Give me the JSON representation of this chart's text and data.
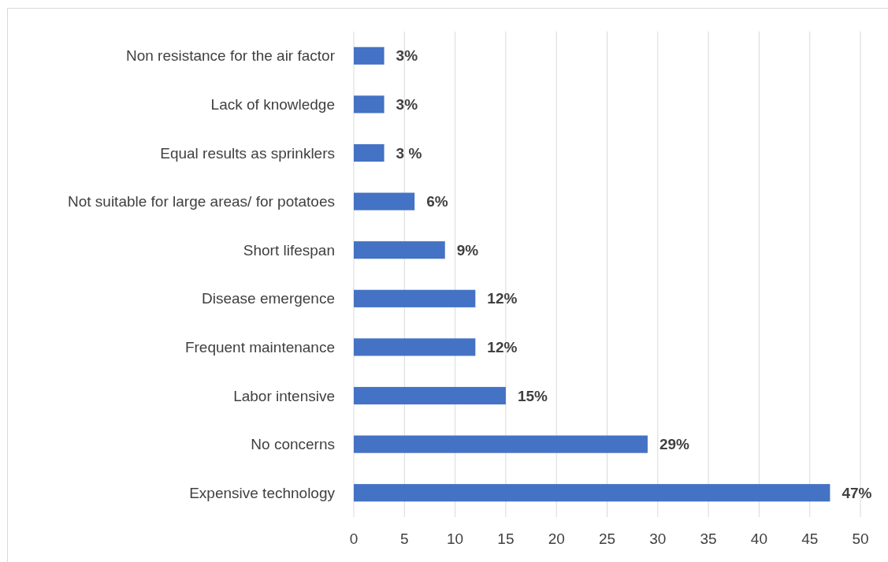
{
  "chart_data": {
    "type": "bar",
    "orientation": "horizontal",
    "categories": [
      "Non resistance for the air factor",
      "Lack of knowledge",
      "Equal results as sprinklers",
      "Not suitable for large areas/ for potatoes",
      "Short lifespan",
      "Disease emergence",
      "Frequent maintenance",
      "Labor intensive",
      "No concerns",
      "Expensive technology"
    ],
    "values": [
      3,
      3,
      3,
      6,
      9,
      12,
      12,
      15,
      29,
      47
    ],
    "value_labels": [
      "3%",
      "3%",
      "3 %",
      "6%",
      "9%",
      "12%",
      "12%",
      "15%",
      "29%",
      "47%"
    ],
    "color": "#4472c4",
    "xlim": [
      0,
      50
    ],
    "xticks": [
      0,
      5,
      10,
      15,
      20,
      25,
      30,
      35,
      40,
      45,
      50
    ],
    "grid": "x"
  }
}
